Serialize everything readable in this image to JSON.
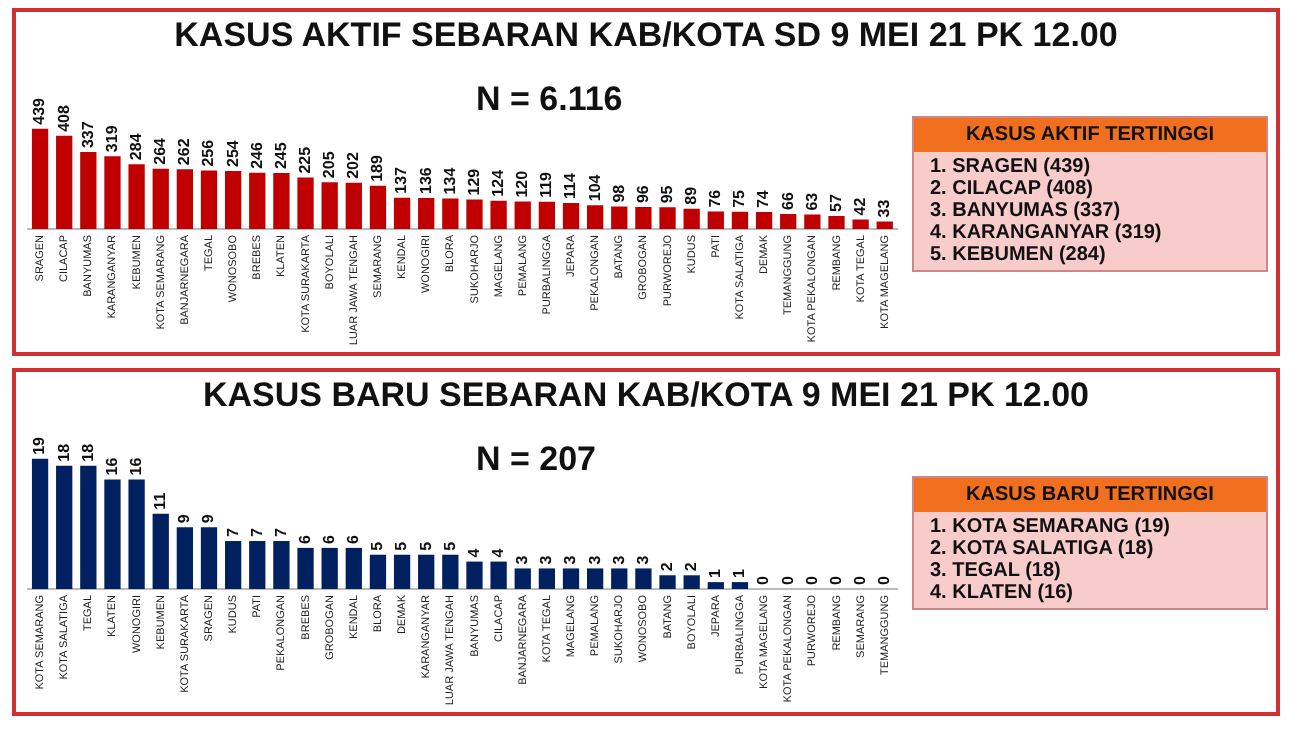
{
  "chart_data": [
    {
      "type": "bar",
      "title": "KASUS AKTIF SEBARAN KAB/KOTA SD 9 MEI 21 PK 12.00",
      "subtitle": "N = 6.116",
      "categories": [
        "SRAGEN",
        "CILACAP",
        "BANYUMAS",
        "KARANGANYAR",
        "KEBUMEN",
        "KOTA SEMARANG",
        "BANJARNEGARA",
        "TEGAL",
        "WONOSOBO",
        "BREBES",
        "KLATEN",
        "KOTA SURAKARTA",
        "BOYOLALI",
        "LUAR JAWA TENGAH",
        "SEMARANG",
        "KENDAL",
        "WONOGIRI",
        "BLORA",
        "SUKOHARJO",
        "MAGELANG",
        "PEMALANG",
        "PURBALINGGA",
        "JEPARA",
        "PEKALONGAN",
        "BATANG",
        "GROBOGAN",
        "PURWOREJO",
        "KUDUS",
        "PATI",
        "KOTA SALATIGA",
        "DEMAK",
        "TEMANGGUNG",
        "KOTA PEKALONGAN",
        "REMBANG",
        "KOTA TEGAL",
        "KOTA MAGELANG"
      ],
      "values": [
        439,
        408,
        337,
        319,
        284,
        264,
        262,
        256,
        254,
        246,
        245,
        225,
        205,
        202,
        189,
        137,
        136,
        134,
        129,
        124,
        120,
        119,
        114,
        104,
        98,
        96,
        95,
        89,
        76,
        75,
        74,
        66,
        63,
        57,
        42,
        33
      ],
      "color": "#c00000",
      "data_labels": true,
      "legend": false,
      "grid": false,
      "annotations": [
        "KASUS AKTIF TERTINGGI",
        "1. SRAGEN (439)",
        "2. CILACAP (408)",
        "3. BANYUMAS (337)",
        "4. KARANGANYAR (319)",
        "5. KEBUMEN (284)"
      ]
    },
    {
      "type": "bar",
      "title": "KASUS BARU SEBARAN KAB/KOTA 9 MEI 21 PK 12.00",
      "subtitle": "N = 207",
      "categories": [
        "KOTA SEMARANG",
        "KOTA SALATIGA",
        "TEGAL",
        "KLATEN",
        "WONOGIRI",
        "KEBUMEN",
        "KOTA SURAKARTA",
        "SRAGEN",
        "KUDUS",
        "PATI",
        "PEKALONGAN",
        "BREBES",
        "GROBOGAN",
        "KENDAL",
        "BLORA",
        "DEMAK",
        "KARANGANYAR",
        "LUAR JAWA TENGAH",
        "BANYUMAS",
        "CILACAP",
        "BANJARNEGARA",
        "KOTA TEGAL",
        "MAGELANG",
        "PEMALANG",
        "SUKOHARJO",
        "WONOSOBO",
        "BATANG",
        "BOYOLALI",
        "JEPARA",
        "PURBALINGGA",
        "KOTA MAGELANG",
        "KOTA PEKALONGAN",
        "PURWOREJO",
        "REMBANG",
        "SEMARANG",
        "TEMANGGUNG"
      ],
      "values": [
        19,
        18,
        18,
        16,
        16,
        11,
        9,
        9,
        7,
        7,
        7,
        6,
        6,
        6,
        5,
        5,
        5,
        5,
        4,
        4,
        3,
        3,
        3,
        3,
        3,
        3,
        2,
        2,
        1,
        1,
        0,
        0,
        0,
        0,
        0,
        0
      ],
      "color": "#002060",
      "data_labels": true,
      "legend": false,
      "grid": false,
      "annotations": [
        "KASUS BARU TERTINGGI",
        "1. KOTA SEMARANG (19)",
        "2. KOTA SALATIGA (18)",
        "3. TEGAL (18)",
        "4. KLATEN (16)"
      ]
    }
  ]
}
